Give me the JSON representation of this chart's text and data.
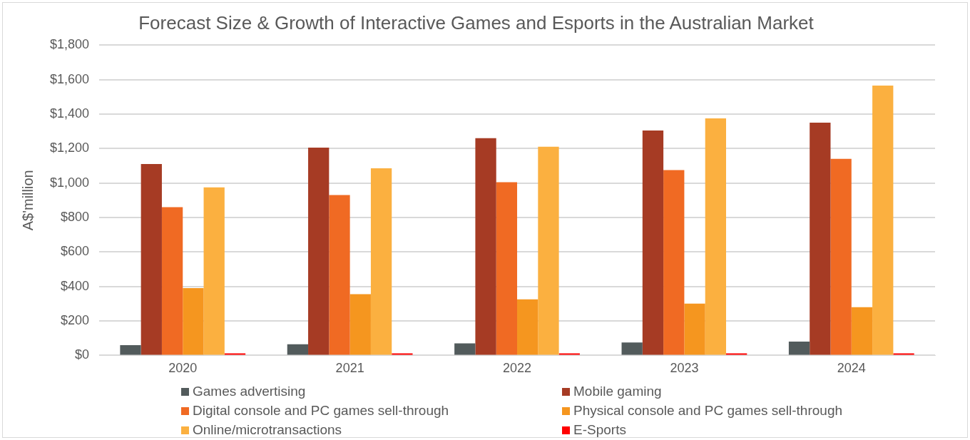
{
  "chart_data": {
    "type": "bar",
    "title": "Forecast Size & Growth of Interactive Games and Esports in the Australian Market",
    "ylabel": "A$'million",
    "categories": [
      "2020",
      "2021",
      "2022",
      "2023",
      "2024"
    ],
    "series": [
      {
        "name": "Games advertising",
        "color": "#525b5c",
        "values": [
          60,
          65,
          70,
          75,
          80
        ]
      },
      {
        "name": "Mobile gaming",
        "color": "#a63b24",
        "values": [
          1110,
          1205,
          1260,
          1305,
          1350
        ]
      },
      {
        "name": "Digital console and PC games sell-through",
        "color": "#f06a23",
        "values": [
          860,
          930,
          1005,
          1075,
          1140
        ]
      },
      {
        "name": "Physical console and PC games sell-through",
        "color": "#f5961f",
        "values": [
          390,
          355,
          325,
          300,
          280
        ]
      },
      {
        "name": "Online/microtransactions",
        "color": "#fbb040",
        "values": [
          975,
          1085,
          1210,
          1375,
          1565
        ]
      },
      {
        "name": "E-Sports",
        "color": "#ff0000",
        "values": [
          5,
          5,
          6,
          7,
          8
        ]
      }
    ],
    "ylim": [
      0,
      1800
    ],
    "yticks": [
      {
        "value": 0,
        "label": "$0"
      },
      {
        "value": 200,
        "label": "$200"
      },
      {
        "value": 400,
        "label": "$400"
      },
      {
        "value": 600,
        "label": "$600"
      },
      {
        "value": 800,
        "label": "$800"
      },
      {
        "value": 1000,
        "label": "$1,000"
      },
      {
        "value": 1200,
        "label": "$1,200"
      },
      {
        "value": 1400,
        "label": "$1,400"
      },
      {
        "value": 1600,
        "label": "$1,600"
      },
      {
        "value": 1800,
        "label": "$1,800"
      }
    ],
    "grid": "y",
    "legend": "bottom"
  }
}
